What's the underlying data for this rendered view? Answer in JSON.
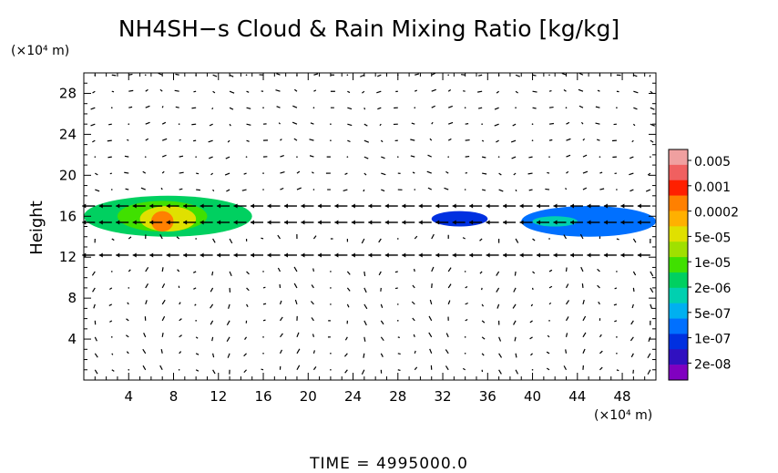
{
  "chart_data": {
    "type": "heatmap",
    "title": "NH4SH−s Cloud & Rain Mixing Ratio [kg/kg]",
    "ylabel": "Height",
    "y_unit": "(×10⁴ m)",
    "x_unit": "(×10⁴ m)",
    "footer": "TIME  =  4995000.0",
    "xlim": [
      0,
      51
    ],
    "ylim": [
      0,
      30
    ],
    "xticks": [
      "4",
      "8",
      "12",
      "16",
      "20",
      "24",
      "28",
      "32",
      "36",
      "40",
      "44",
      "48"
    ],
    "yticks": [
      "4",
      "8",
      "12",
      "16",
      "20",
      "24",
      "28"
    ],
    "colorbar_labels": [
      "0.005",
      "0.001",
      "0.0002",
      "5e-05",
      "1e-05",
      "2e-06",
      "5e-07",
      "1e-07",
      "2e-08"
    ],
    "colors": [
      "#f0a0a0",
      "#f06060",
      "#ff2000",
      "#ff8000",
      "#ffb000",
      "#e0e000",
      "#a0e000",
      "#40e000",
      "#00d060",
      "#00d0b0",
      "#00b0f0",
      "#0070ff",
      "#0030e0",
      "#3010c0",
      "#8000c0"
    ],
    "regions": [
      {
        "x": [
          0,
          15
        ],
        "y": [
          14,
          18
        ],
        "level": 8
      },
      {
        "x": [
          3,
          11
        ],
        "y": [
          14.5,
          17.5
        ],
        "level": 7
      },
      {
        "x": [
          5,
          10
        ],
        "y": [
          14.5,
          17
        ],
        "level": 5
      },
      {
        "x": [
          6,
          8
        ],
        "y": [
          14.5,
          16.5
        ],
        "level": 3
      },
      {
        "x": [
          31,
          36
        ],
        "y": [
          15,
          16.5
        ],
        "level": 12
      },
      {
        "x": [
          39,
          51
        ],
        "y": [
          14,
          17
        ],
        "level": 11
      },
      {
        "x": [
          40,
          44
        ],
        "y": [
          15,
          16
        ],
        "level": 9
      }
    ]
  }
}
